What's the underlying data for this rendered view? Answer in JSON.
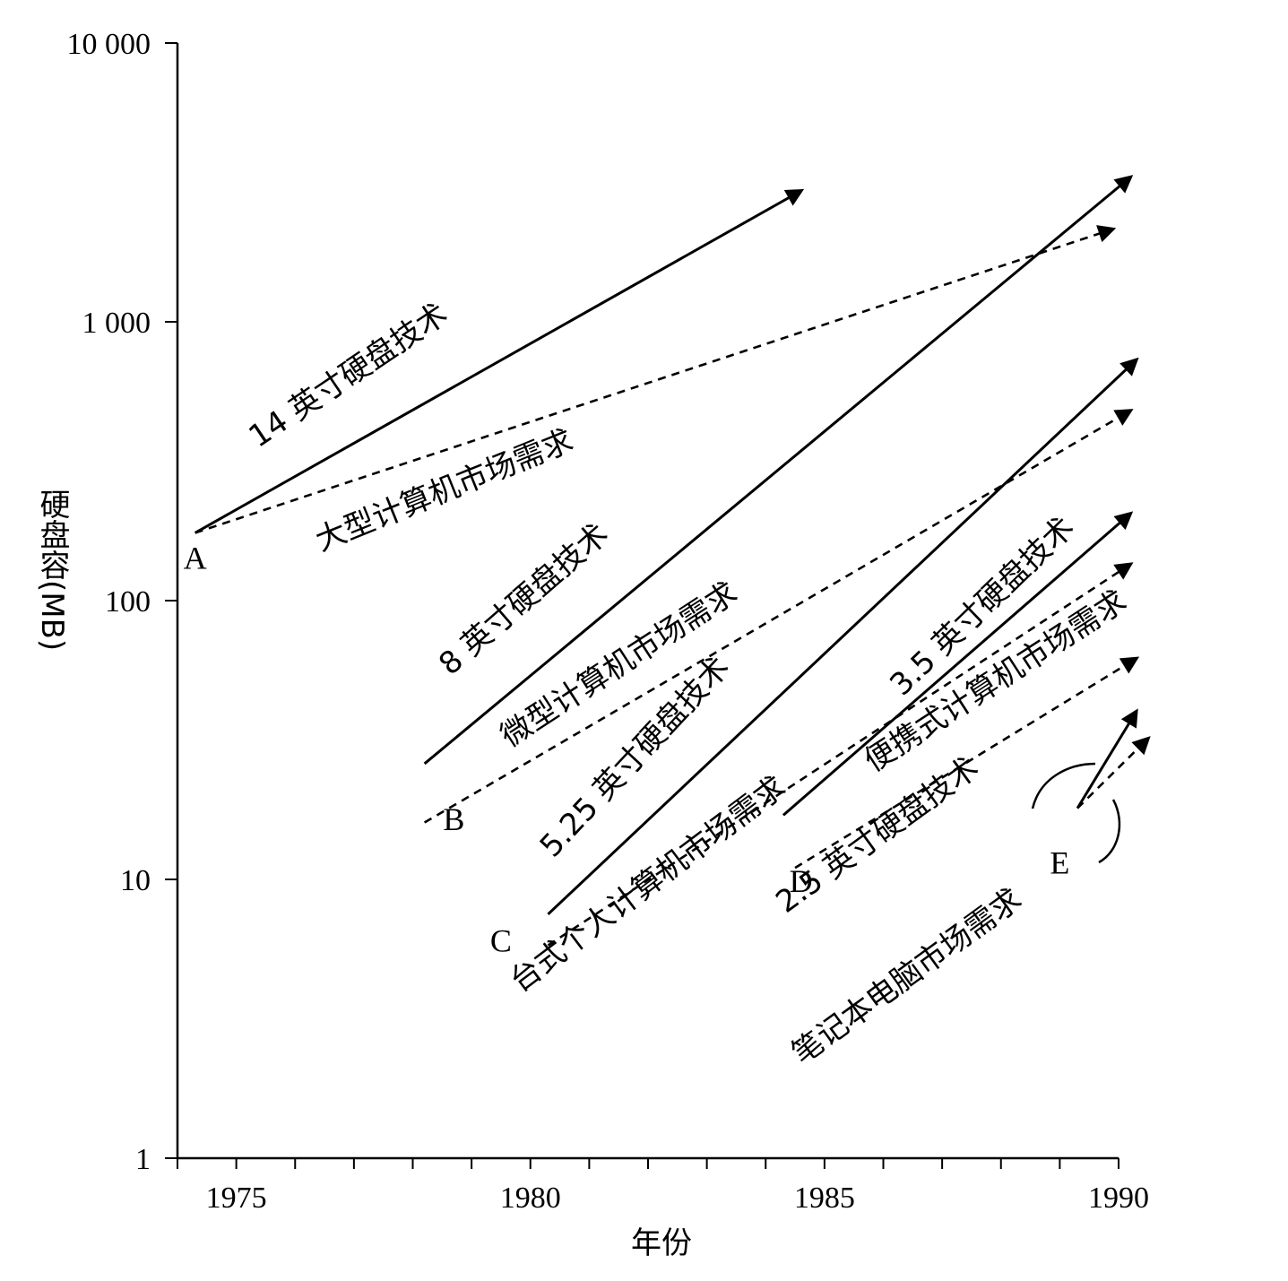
{
  "chart_data": {
    "type": "line",
    "title": "",
    "xlabel": "年份",
    "ylabel": "硬盘容(MB)",
    "xlim": [
      1974,
      1990
    ],
    "ylim": [
      1,
      10000
    ],
    "yscale": "log",
    "x_ticks": [
      "1975",
      "1980",
      "1985",
      "1990"
    ],
    "y_ticks": [
      "1",
      "10",
      "100",
      "1 000",
      "10 000"
    ],
    "grid": false,
    "legend": "none",
    "point_labels": [
      {
        "label": "A",
        "x": 1974.3,
        "y": 130
      },
      {
        "label": "B",
        "x": 1978.7,
        "y": 15
      },
      {
        "label": "C",
        "x": 1979.5,
        "y": 5.5
      },
      {
        "label": "D",
        "x": 1984.6,
        "y": 9
      },
      {
        "label": "E",
        "x": 1989.0,
        "y": 10.5
      }
    ],
    "series": [
      {
        "name": "14 英寸硬盘技术",
        "style": "solid",
        "x": [
          1974.3,
          1984.6
        ],
        "y": [
          175,
          2950
        ],
        "label_x": 1977.0,
        "label_y": 600,
        "label_angle": -34
      },
      {
        "name": "大型计算机市场需求",
        "style": "dashed",
        "x": [
          1974.3,
          1989.9
        ],
        "y": [
          175,
          2150
        ],
        "label_x": 1978.6,
        "label_y": 230,
        "label_angle": -22
      },
      {
        "name": "8 英寸硬盘技术",
        "style": "solid",
        "x": [
          1978.2,
          1990.2
        ],
        "y": [
          26,
          3300
        ],
        "label_x": 1980.0,
        "label_y": 95,
        "label_angle": -41
      },
      {
        "name": "微型计算机市场需求",
        "style": "dashed",
        "x": [
          1978.2,
          1990.2
        ],
        "y": [
          16,
          480
        ],
        "label_x": 1981.6,
        "label_y": 55,
        "label_angle": -33
      },
      {
        "name": "5.25 英寸硬盘技术",
        "style": "solid",
        "x": [
          1980.3,
          1990.3
        ],
        "y": [
          7.5,
          730
        ],
        "label_x": 1981.9,
        "label_y": 26,
        "label_angle": -47
      },
      {
        "name": "台式个人计算机市场需求",
        "style": "dashed",
        "x": [
          1980.3,
          1990.2
        ],
        "y": [
          5.8,
          135
        ],
        "label_x": 1982.1,
        "label_y": 9,
        "label_angle": -37
      },
      {
        "name": "3.5 英寸硬盘技术",
        "style": "solid",
        "x": [
          1984.3,
          1990.2
        ],
        "y": [
          17,
          205
        ],
        "label_x": 1987.8,
        "label_y": 90,
        "label_angle": -44
      },
      {
        "name": "便携式计算机市场需求",
        "style": "dashed",
        "x": [
          1984.5,
          1990.3
        ],
        "y": [
          11,
          62
        ],
        "label_x": 1988.0,
        "label_y": 48,
        "label_angle": -33
      },
      {
        "name": "2.5 英寸硬盘技术",
        "style": "solid",
        "x": [
          1989.3,
          1990.3
        ],
        "y": [
          18,
          40
        ],
        "label_x": 1986.0,
        "label_y": 13.5,
        "label_angle": -36
      },
      {
        "name": "笔记本电脑市场需求",
        "style": "dashed",
        "x": [
          1989.3,
          1990.5
        ],
        "y": [
          18,
          32
        ],
        "label_x": 1986.5,
        "label_y": 4.2,
        "label_angle": -36
      }
    ]
  }
}
